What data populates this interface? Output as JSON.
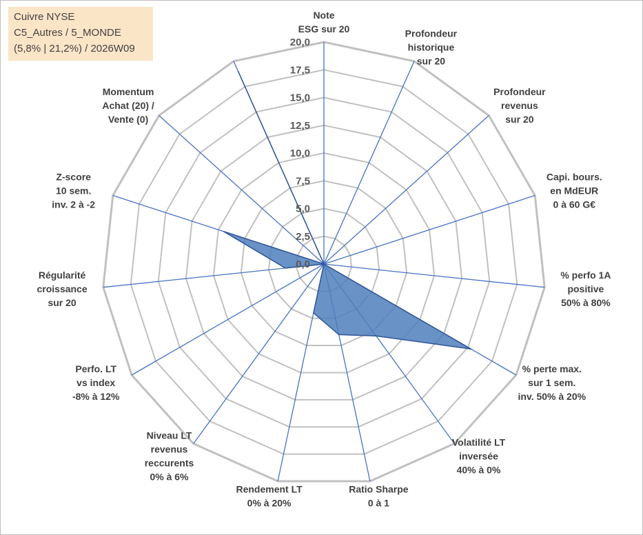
{
  "title_box": {
    "line1": "Cuivre NYSE",
    "line2": "C5_Autres / 5_MONDE",
    "line3": "(5,8% | 21,2%) / 2026W09"
  },
  "chart_data": {
    "type": "radar",
    "rlim": [
      0,
      20
    ],
    "ticks": [
      "0,0",
      "2,5",
      "5,0",
      "7,5",
      "10,0",
      "12,5",
      "15,0",
      "17,5",
      "20,0"
    ],
    "grid": true,
    "axes": [
      {
        "label": [
          "Note",
          "ESG sur 20"
        ],
        "value": 0
      },
      {
        "label": [
          "Profondeur",
          "historique",
          "sur 20"
        ],
        "value": 0
      },
      {
        "label": [
          "Profondeur",
          "revenus",
          "sur 20"
        ],
        "value": 0
      },
      {
        "label": [
          "Capi. bours.",
          "en MdEUR",
          "0 à 60 G€"
        ],
        "value": 0
      },
      {
        "label": [
          "% perfo 1A",
          "positive",
          "50% à 80%"
        ],
        "value": 0
      },
      {
        "label": [
          "% perte max.",
          "sur 1 sem.",
          "inv. 50% à 20%"
        ],
        "value": 15.3
      },
      {
        "label": [
          "Volatilité LT",
          "inversée",
          "40% à 0%"
        ],
        "value": 8
      },
      {
        "label": [
          "Ratio Sharpe",
          "0 à 1"
        ],
        "value": 6.5
      },
      {
        "label": [
          "Rendement LT",
          "0% à 20%"
        ],
        "value": 4.5
      },
      {
        "label": [
          "Niveau LT",
          "revenus",
          "reccurents",
          "0% à 6%"
        ],
        "value": 0
      },
      {
        "label": [
          "Perfo. LT",
          "vs index",
          "-8% à 12%"
        ],
        "value": 0
      },
      {
        "label": [
          "Régularité",
          "croissance",
          "sur 20"
        ],
        "value": 3.5
      },
      {
        "label": [
          "Z-score",
          "10 sem.",
          "inv. 2 à -2"
        ],
        "value": 9.5
      },
      {
        "label": [
          "Momentum",
          "Achat (20) /",
          "Vente (0)"
        ],
        "value": 0
      },
      {
        "label": [],
        "value": 19
      }
    ],
    "colors": {
      "fill": "#4f7fbc",
      "stroke": "#2f5597",
      "grid": "#c0c0c0",
      "spoke": "#4472c4"
    }
  }
}
